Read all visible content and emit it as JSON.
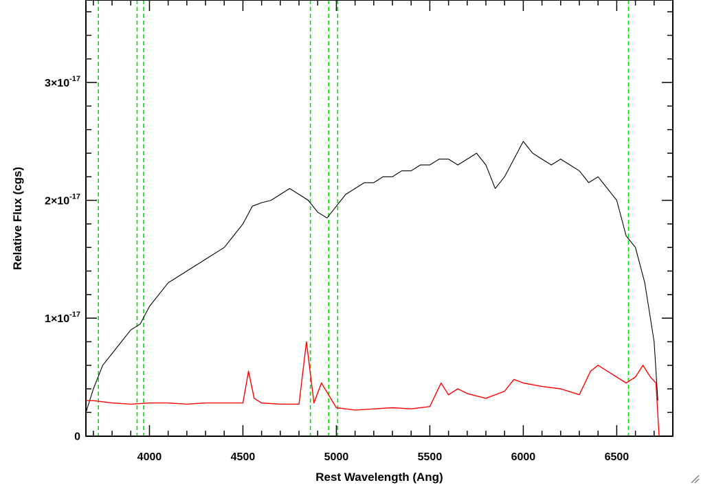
{
  "chart_data": {
    "type": "line",
    "xlabel": "Rest Wavelength (Ang)",
    "ylabel": "Relative Flux (cgs)",
    "xlim": [
      3660,
      6800
    ],
    "ylim": [
      -2e-20,
      3.7e-17
    ],
    "x_ticks": [
      {
        "value": 4000,
        "label": "4000"
      },
      {
        "value": 4500,
        "label": "4500"
      },
      {
        "value": 5000,
        "label": "5000"
      },
      {
        "value": 5500,
        "label": "5500"
      },
      {
        "value": 6000,
        "label": "6000"
      },
      {
        "value": 6500,
        "label": "6500"
      }
    ],
    "y_ticks": [
      {
        "value": 0,
        "mantissa": "0",
        "exponent": ""
      },
      {
        "value": 1e-17,
        "mantissa": "1×10",
        "exponent": "-17"
      },
      {
        "value": 2e-17,
        "mantissa": "2×10",
        "exponent": "-17"
      },
      {
        "value": 3e-17,
        "mantissa": "3×10",
        "exponent": "-17"
      }
    ],
    "reference_lines": [
      3727,
      3934,
      3969,
      4861,
      4959,
      5007,
      6563
    ],
    "series": [
      {
        "color": "#000000",
        "x": [
          3660,
          3700,
          3750,
          3800,
          3850,
          3900,
          3950,
          4000,
          4050,
          4100,
          4150,
          4200,
          4250,
          4300,
          4350,
          4400,
          4450,
          4500,
          4550,
          4600,
          4650,
          4700,
          4750,
          4800,
          4850,
          4900,
          4950,
          5000,
          5050,
          5100,
          5150,
          5200,
          5250,
          5300,
          5350,
          5400,
          5450,
          5500,
          5550,
          5600,
          5650,
          5700,
          5750,
          5800,
          5850,
          5900,
          5950,
          6000,
          6050,
          6100,
          6150,
          6200,
          6250,
          6300,
          6350,
          6400,
          6450,
          6500,
          6550,
          6600,
          6650,
          6700,
          6720
        ],
        "values": [
          2e-18,
          4e-18,
          6e-18,
          7e-18,
          8e-18,
          9e-18,
          9.5e-18,
          1.1e-17,
          1.2e-17,
          1.3e-17,
          1.35e-17,
          1.4e-17,
          1.45e-17,
          1.5e-17,
          1.55e-17,
          1.6e-17,
          1.7e-17,
          1.8e-17,
          1.95e-17,
          1.98e-17,
          2e-17,
          2.05e-17,
          2.1e-17,
          2.05e-17,
          2e-17,
          1.9e-17,
          1.85e-17,
          1.95e-17,
          2.05e-17,
          2.1e-17,
          2.15e-17,
          2.15e-17,
          2.2e-17,
          2.2e-17,
          2.25e-17,
          2.25e-17,
          2.3e-17,
          2.3e-17,
          2.35e-17,
          2.35e-17,
          2.3e-17,
          2.35e-17,
          2.4e-17,
          2.3e-17,
          2.1e-17,
          2.2e-17,
          2.35e-17,
          2.5e-17,
          2.4e-17,
          2.35e-17,
          2.3e-17,
          2.35e-17,
          2.3e-17,
          2.25e-17,
          2.15e-17,
          2.2e-17,
          2.1e-17,
          2e-17,
          1.7e-17,
          1.6e-17,
          1.3e-17,
          8e-18,
          3e-18
        ]
      },
      {
        "color": "#ff0000",
        "x": [
          3660,
          3700,
          3800,
          3900,
          4000,
          4100,
          4200,
          4300,
          4400,
          4500,
          4530,
          4560,
          4600,
          4700,
          4800,
          4840,
          4880,
          4920,
          5000,
          5100,
          5200,
          5300,
          5400,
          5500,
          5560,
          5600,
          5650,
          5700,
          5800,
          5900,
          5950,
          6000,
          6100,
          6200,
          6300,
          6360,
          6400,
          6450,
          6500,
          6550,
          6600,
          6640,
          6680,
          6710,
          6730
        ],
        "values": [
          3e-18,
          3e-18,
          2.8e-18,
          2.7e-18,
          2.8e-18,
          2.8e-18,
          2.7e-18,
          2.8e-18,
          2.8e-18,
          2.8e-18,
          5.5e-18,
          3.2e-18,
          2.8e-18,
          2.7e-18,
          2.7e-18,
          8e-18,
          2.8e-18,
          4.5e-18,
          2.4e-18,
          2.2e-18,
          2.3e-18,
          2.4e-18,
          2.3e-18,
          2.5e-18,
          4.5e-18,
          3.5e-18,
          4e-18,
          3.6e-18,
          3.2e-18,
          3.8e-18,
          4.8e-18,
          4.5e-18,
          4.2e-18,
          4e-18,
          3.5e-18,
          5.5e-18,
          6e-18,
          5.5e-18,
          5e-18,
          4.5e-18,
          5e-18,
          6e-18,
          5e-18,
          4.5e-18,
          -1e-18
        ]
      }
    ]
  }
}
